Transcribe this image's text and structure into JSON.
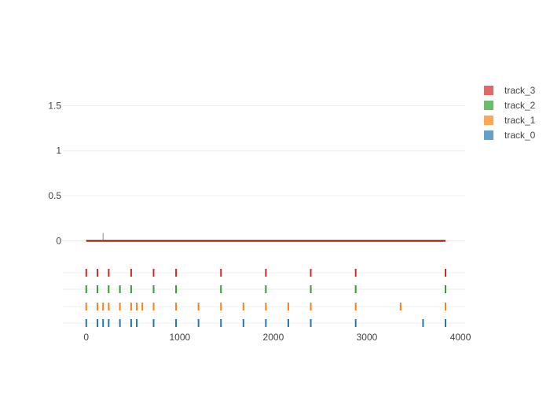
{
  "chart_data": {
    "type": "line",
    "x_axis": {
      "range": [
        -250,
        4050
      ],
      "ticks": [
        0,
        1000,
        2000,
        3000,
        4000
      ],
      "tick_labels": [
        "0",
        "1000",
        "2000",
        "3000",
        "4000"
      ]
    },
    "y_axis": {
      "range": [
        -0.18,
        1.8
      ],
      "ticks": [
        0,
        0.5,
        1,
        1.5
      ],
      "tick_labels": [
        "0",
        "0.5",
        "1",
        "1.5"
      ]
    },
    "grid": true,
    "legend_placement": "top-right",
    "series": [
      {
        "name": "track_3",
        "color": "#d62728",
        "line_x": [
          0,
          3840
        ],
        "line_y": [
          0,
          0
        ],
        "rug_x": [
          0,
          120,
          240,
          480,
          720,
          960,
          1440,
          1920,
          2400,
          2880,
          3840
        ]
      },
      {
        "name": "track_2",
        "color": "#2ca02c",
        "line_x": [
          0,
          3840
        ],
        "line_y": [
          0,
          0
        ],
        "rug_x": [
          0,
          120,
          240,
          360,
          480,
          720,
          960,
          1440,
          1920,
          2400,
          2880,
          3840
        ]
      },
      {
        "name": "track_1",
        "color": "#ff7f0e",
        "line_x": [
          0,
          3840
        ],
        "line_y": [
          0,
          0
        ],
        "rug_x": [
          0,
          120,
          180,
          240,
          360,
          480,
          540,
          600,
          720,
          960,
          1200,
          1440,
          1680,
          1920,
          2160,
          2400,
          2880,
          3360,
          3840
        ]
      },
      {
        "name": "track_0",
        "color": "#1f77b4",
        "line_x": [
          0,
          3840
        ],
        "line_y": [
          0,
          0
        ],
        "rug_x": [
          0,
          120,
          180,
          240,
          360,
          480,
          540,
          720,
          960,
          1200,
          1440,
          1680,
          1920,
          2160,
          2400,
          2880,
          3600,
          3840
        ]
      }
    ],
    "annotation_tick_x": 180
  }
}
